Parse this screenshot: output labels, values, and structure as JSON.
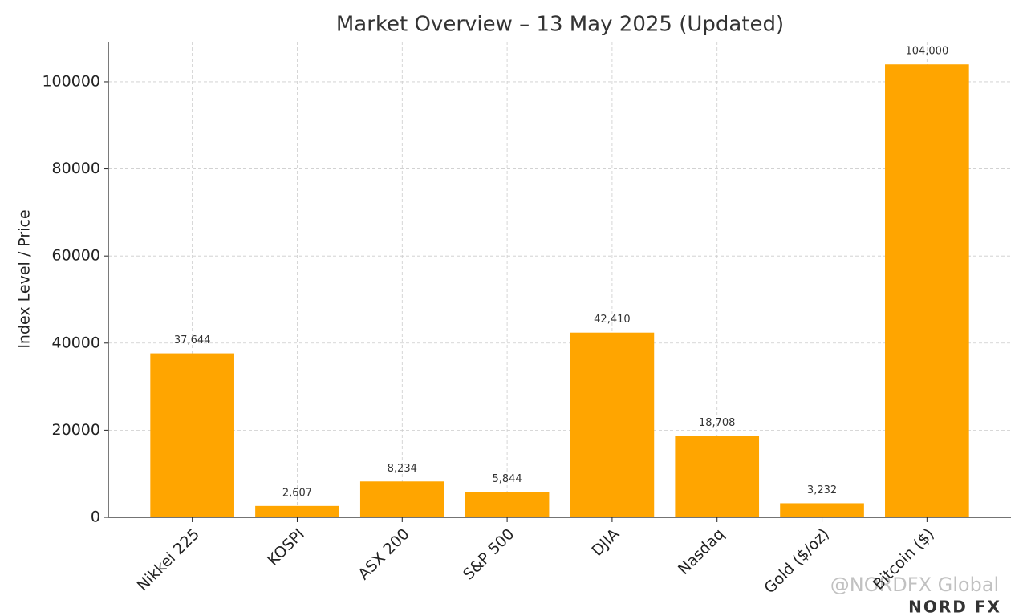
{
  "chart_data": {
    "type": "bar",
    "title": "Market Overview – 13 May 2025 (Updated)",
    "y_label": "Index Level / Price",
    "categories": [
      "Nikkei 225",
      "KOSPI",
      "ASX 200",
      "S&P 500",
      "DJIA",
      "Nasdaq",
      "Gold ($/oz)",
      "Bitcoin ($)"
    ],
    "values": [
      37644,
      2607,
      8234,
      5844,
      42410,
      18708,
      3232,
      104000
    ],
    "value_labels": [
      "37,644",
      "2,607",
      "8,234",
      "5,844",
      "42,410",
      "18,708",
      "3,232",
      "104,000"
    ],
    "color": "#ffa500",
    "ylim": [
      0,
      109200
    ],
    "yticks": [
      0,
      20000,
      40000,
      60000,
      80000,
      100000
    ],
    "grid": true
  },
  "watermark": {
    "handle": "@NORDFX Global",
    "logo": "NORD FX"
  }
}
